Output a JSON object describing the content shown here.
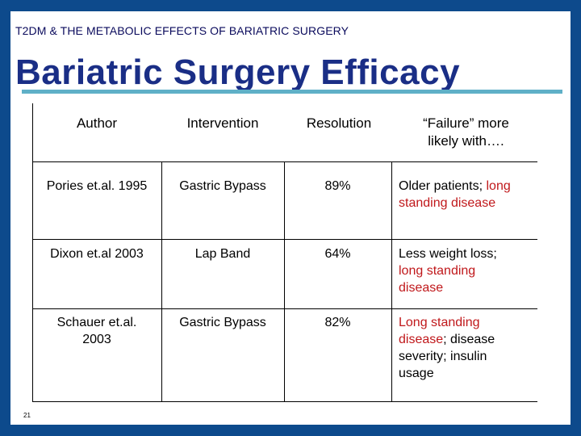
{
  "slide": {
    "subtitle": "T2DM & THE METABOLIC EFFECTS OF BARIATRIC SURGERY",
    "title": "Bariatric Surgery Efficacy",
    "page_number": "21"
  },
  "table": {
    "headers": {
      "author": "Author",
      "intervention": "Intervention",
      "resolution": "Resolution",
      "failure_line1": "“Failure” more",
      "failure_line2": "likely with…."
    },
    "rows": [
      {
        "author": "Pories et.al. 1995",
        "intervention": "Gastric Bypass",
        "resolution": "89%",
        "failure": {
          "part1": "Older patients; ",
          "part2_red": "long",
          "part3_red": "standing disease"
        }
      },
      {
        "author": "Dixon et.al 2003",
        "intervention": "Lap Band",
        "resolution": "64%",
        "failure": {
          "part1": "Less weight loss;",
          "part2_red": "long standing",
          "part3_red": "disease"
        }
      },
      {
        "author_line1": "Schauer et.al.",
        "author_line2": "2003",
        "intervention": "Gastric Bypass",
        "resolution": "82%",
        "failure": {
          "part1_red": "Long standing",
          "part2_red": "disease",
          "part3": "; disease",
          "part4": "severity; insulin",
          "part5": "usage"
        }
      }
    ]
  },
  "colors": {
    "frame": "#0d4a8c",
    "title": "#1a2e86",
    "title_rule": "#5fb0c7",
    "highlight_red": "#c0181b"
  }
}
